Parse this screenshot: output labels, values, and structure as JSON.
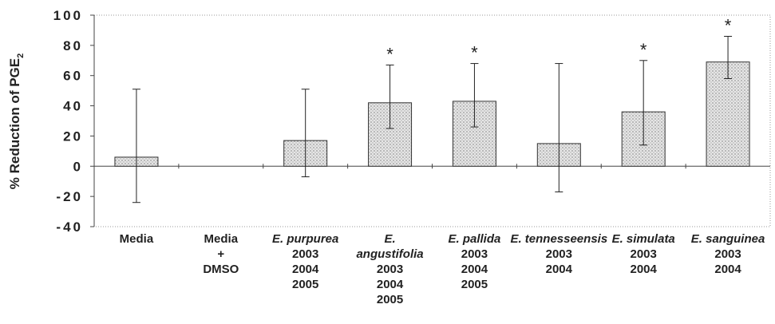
{
  "chart_data": {
    "type": "bar",
    "ylabel": "% Reduction of PGE",
    "ylabel_sub": "2",
    "categories": [
      [
        "Media"
      ],
      [
        "Media",
        "+",
        "DMSO"
      ],
      [
        "E. purpurea",
        "2003",
        "2004",
        "2005"
      ],
      [
        "E.",
        "angustifolia",
        "2003",
        "2004",
        "2005"
      ],
      [
        "E. pallida",
        "2003",
        "2004",
        "2005"
      ],
      [
        "E. tennesseensis",
        "2003",
        "2004"
      ],
      [
        "E. simulata",
        "2003",
        "2004"
      ],
      [
        "E. sanguinea",
        "2003",
        "2004"
      ]
    ],
    "italic_lines": [
      0,
      0,
      1,
      2,
      1,
      1,
      1,
      1
    ],
    "values": [
      6,
      null,
      17,
      42,
      43,
      15,
      36,
      69
    ],
    "error_plus": [
      45,
      null,
      34,
      25,
      25,
      53,
      34,
      17
    ],
    "error_minus": [
      30,
      null,
      24,
      17,
      17,
      32,
      22,
      11
    ],
    "markers": [
      null,
      null,
      null,
      "*",
      "*",
      null,
      "*",
      "*"
    ],
    "color": "#d8d8d8",
    "ylim": [
      -40,
      100
    ],
    "yticks": [
      -40,
      -20,
      0,
      20,
      40,
      60,
      80,
      100
    ]
  }
}
